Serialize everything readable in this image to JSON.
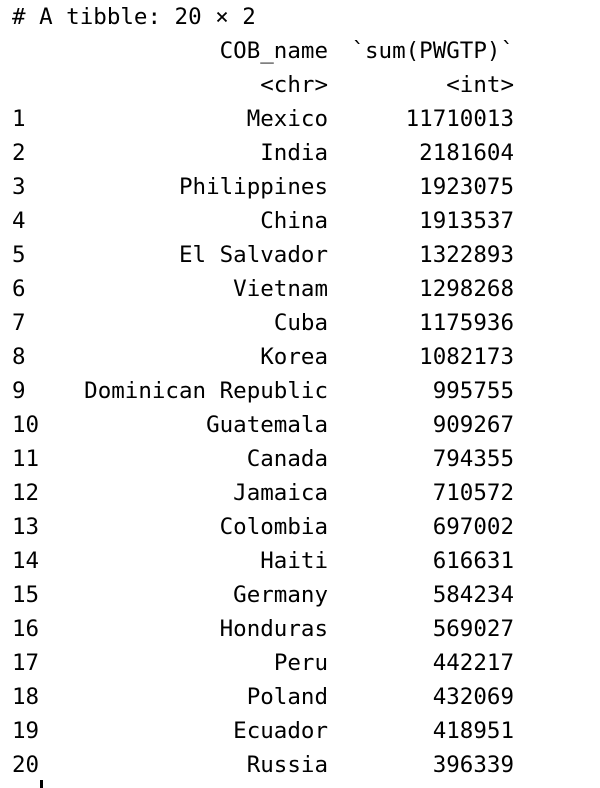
{
  "header": "# A tibble: 20 × 2",
  "columns": {
    "name": "COB_name",
    "value": "`sum(PWGTP)`",
    "name_type": "<chr>",
    "value_type": "<int>"
  },
  "rows": [
    {
      "n": "1",
      "name": "Mexico",
      "value": "11710013"
    },
    {
      "n": "2",
      "name": "India",
      "value": "2181604"
    },
    {
      "n": "3",
      "name": "Philippines",
      "value": "1923075"
    },
    {
      "n": "4",
      "name": "China",
      "value": "1913537"
    },
    {
      "n": "5",
      "name": "El Salvador",
      "value": "1322893"
    },
    {
      "n": "6",
      "name": "Vietnam",
      "value": "1298268"
    },
    {
      "n": "7",
      "name": "Cuba",
      "value": "1175936"
    },
    {
      "n": "8",
      "name": "Korea",
      "value": "1082173"
    },
    {
      "n": "9",
      "name": "Dominican Republic",
      "value": "995755"
    },
    {
      "n": "10",
      "name": "Guatemala",
      "value": "909267"
    },
    {
      "n": "11",
      "name": "Canada",
      "value": "794355"
    },
    {
      "n": "12",
      "name": "Jamaica",
      "value": "710572"
    },
    {
      "n": "13",
      "name": "Colombia",
      "value": "697002"
    },
    {
      "n": "14",
      "name": "Haiti",
      "value": "616631"
    },
    {
      "n": "15",
      "name": "Germany",
      "value": "584234"
    },
    {
      "n": "16",
      "name": "Honduras",
      "value": "569027"
    },
    {
      "n": "17",
      "name": "Peru",
      "value": "442217"
    },
    {
      "n": "18",
      "name": "Poland",
      "value": "432069"
    },
    {
      "n": "19",
      "name": "Ecuador",
      "value": "418951"
    },
    {
      "n": "20",
      "name": "Russia",
      "value": "396339"
    }
  ]
}
